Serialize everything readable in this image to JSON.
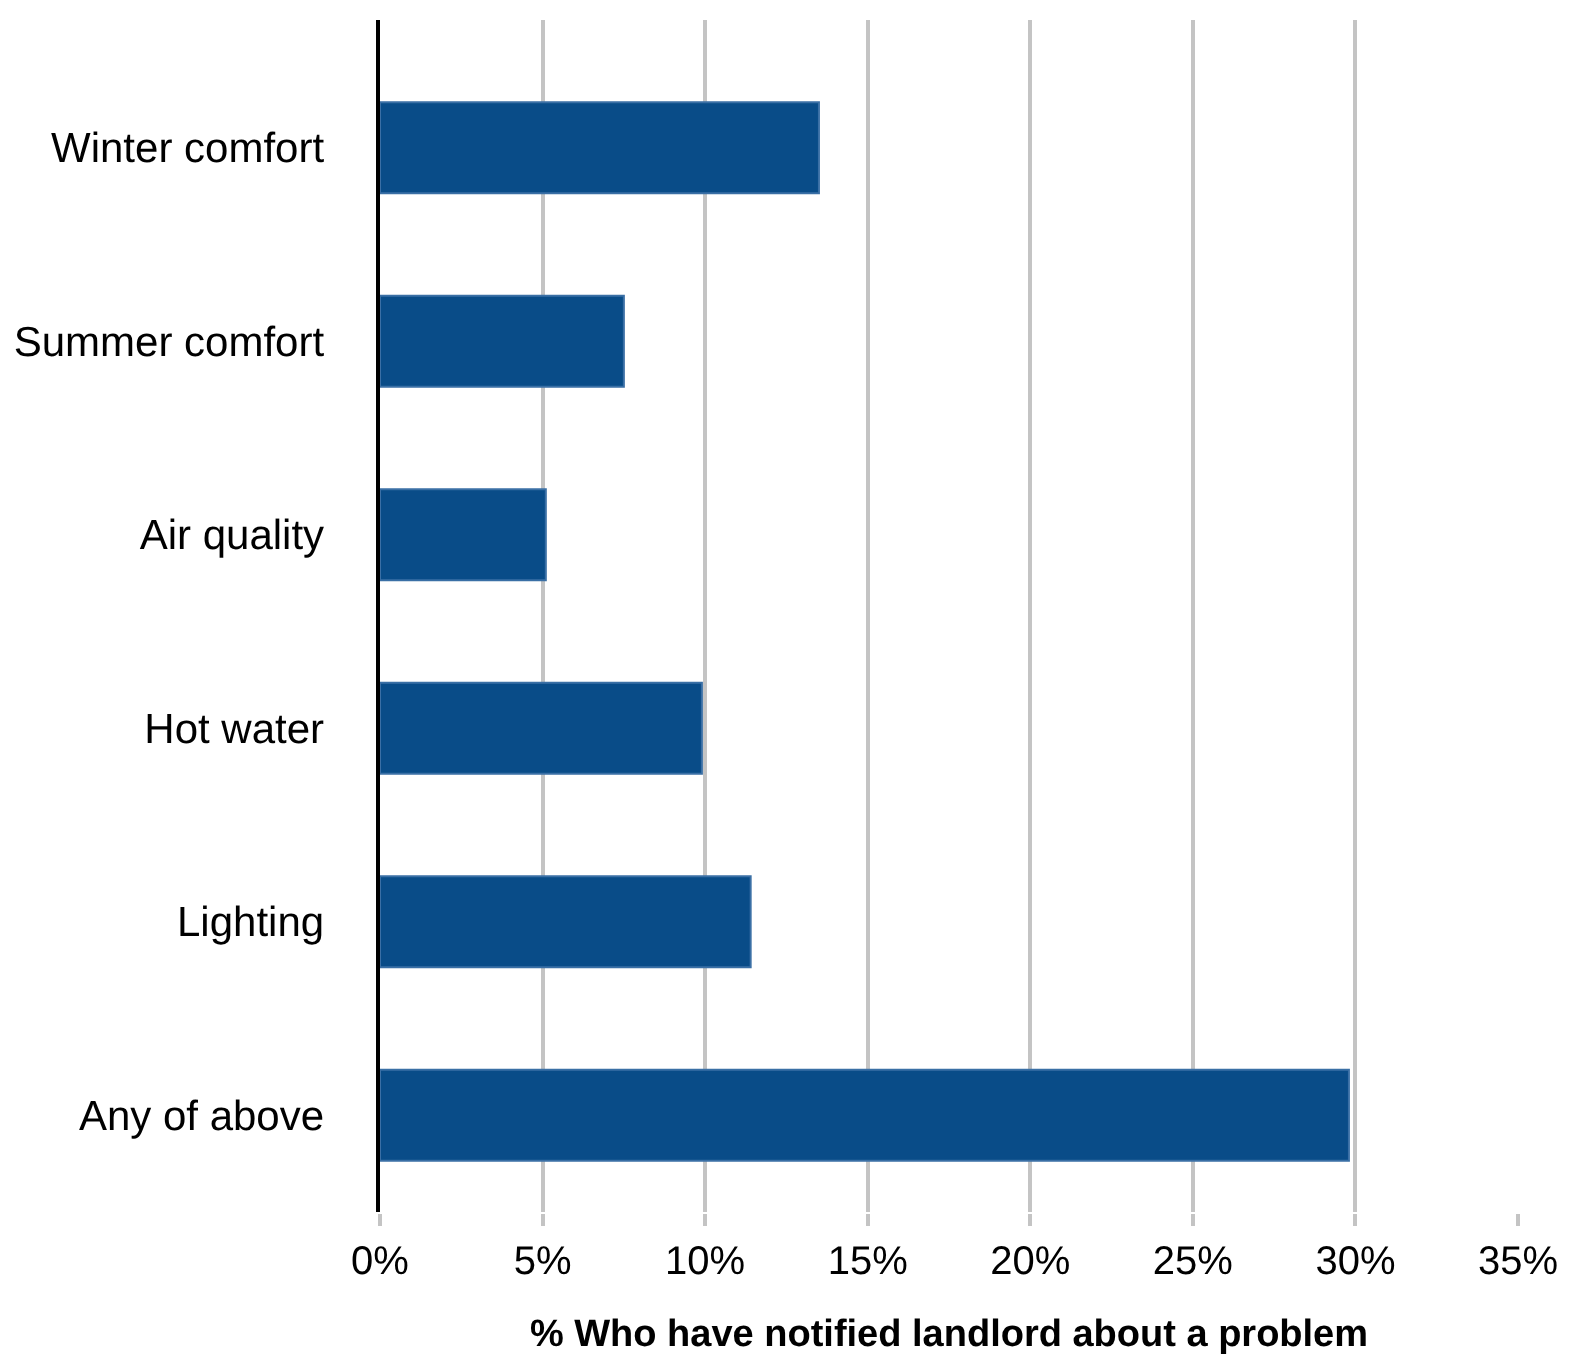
{
  "chart_data": {
    "type": "bar",
    "orientation": "horizontal",
    "categories": [
      "Winter comfort",
      "Summer comfort",
      "Air quality",
      "Hot water",
      "Lighting",
      "Any of above"
    ],
    "values": [
      13.5,
      7.5,
      5.1,
      9.9,
      11.4,
      29.8
    ],
    "color": "#094c88",
    "xlabel": "% Who have notified landlord about a problem",
    "xlim": [
      0,
      35
    ],
    "xticks": [
      {
        "value": 0,
        "label": "0%"
      },
      {
        "value": 5,
        "label": "5%"
      },
      {
        "value": 10,
        "label": "10%"
      },
      {
        "value": 15,
        "label": "15%"
      },
      {
        "value": 20,
        "label": "20%"
      },
      {
        "value": 25,
        "label": "25%"
      },
      {
        "value": 30,
        "label": "30%"
      },
      {
        "value": 35,
        "label": "35%"
      }
    ],
    "grid": "x"
  }
}
